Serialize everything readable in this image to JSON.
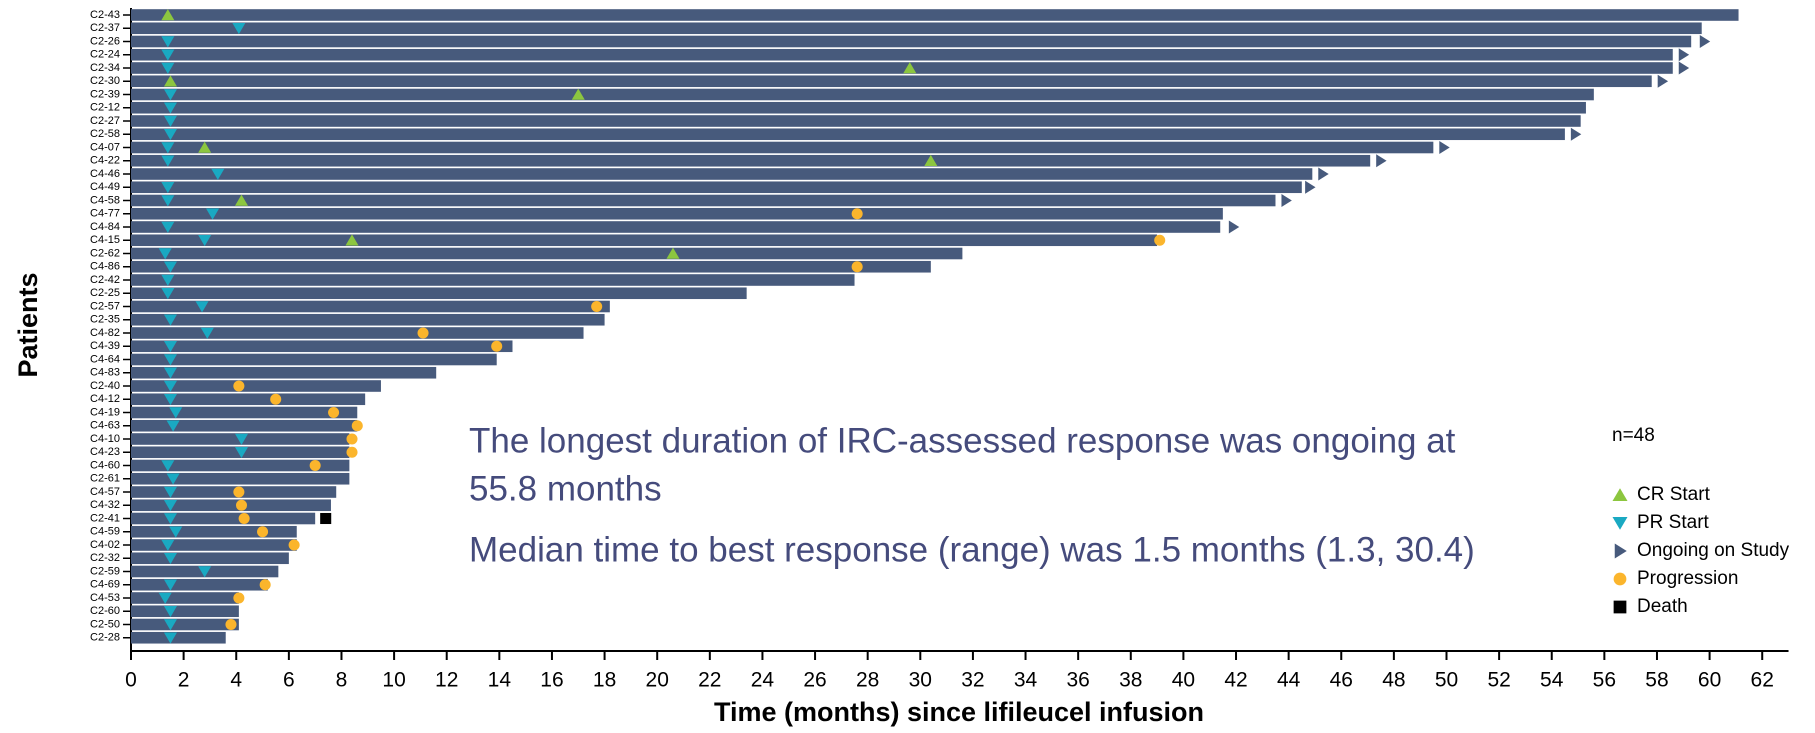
{
  "chart_data": {
    "type": "swimmer",
    "y_label": "Patients",
    "x_label": "Time (months) since lifileucel infusion",
    "annotations": [
      "The longest duration of IRC-assessed response was ongoing at",
      "55.8 months",
      "Median time to best response (range) was 1.5 months (1.3, 30.4)"
    ],
    "n_label": "n=48",
    "bar_color": "#475a7c",
    "categories": [
      "C2-43",
      "C2-37",
      "C2-26",
      "C2-24",
      "C2-34",
      "C2-30",
      "C2-39",
      "C2-12",
      "C2-27",
      "C2-58",
      "C4-07",
      "C4-22",
      "C4-46",
      "C4-49",
      "C4-58",
      "C4-77",
      "C4-84",
      "C4-15",
      "C2-62",
      "C4-86",
      "C2-42",
      "C2-25",
      "C2-57",
      "C2-35",
      "C4-82",
      "C4-39",
      "C4-64",
      "C4-83",
      "C2-40",
      "C4-12",
      "C4-19",
      "C4-63",
      "C4-10",
      "C4-23",
      "C4-60",
      "C2-61",
      "C4-57",
      "C4-32",
      "C2-41",
      "C4-59",
      "C4-02",
      "C2-32",
      "C2-59",
      "C4-69",
      "C4-53",
      "C2-60",
      "C2-50",
      "C2-28"
    ],
    "values": [
      61.1,
      59.7,
      59.3,
      58.6,
      58.6,
      57.8,
      55.6,
      55.3,
      55.1,
      54.5,
      49.5,
      47.1,
      44.9,
      44.5,
      43.5,
      41.5,
      41.4,
      39.0,
      31.6,
      30.4,
      27.5,
      23.4,
      18.2,
      18.0,
      17.2,
      14.5,
      13.9,
      11.6,
      9.5,
      8.9,
      8.6,
      8.6,
      8.3,
      8.3,
      8.3,
      8.3,
      7.8,
      7.6,
      7.0,
      6.3,
      6.3,
      6.0,
      5.6,
      5.2,
      4.1,
      4.1,
      4.1,
      3.6
    ],
    "series": [
      {
        "name": "CR Start",
        "color": "#8cc63f",
        "shape": "up",
        "values": [
          1.4,
          null,
          null,
          null,
          29.6,
          1.5,
          17.0,
          null,
          null,
          null,
          2.8,
          30.4,
          null,
          null,
          4.2,
          null,
          null,
          8.4,
          20.6,
          null,
          null,
          null,
          null,
          null,
          null,
          null,
          null,
          null,
          null,
          null,
          null,
          null,
          null,
          null,
          null,
          null,
          null,
          null,
          null,
          null,
          null,
          null,
          null,
          null,
          null,
          null,
          null,
          null
        ]
      },
      {
        "name": "PR Start",
        "color": "#1aa9c2",
        "shape": "down",
        "values": [
          null,
          4.1,
          1.4,
          1.4,
          1.4,
          null,
          1.5,
          1.5,
          1.5,
          1.5,
          1.4,
          1.4,
          3.3,
          1.4,
          1.4,
          3.1,
          1.4,
          2.8,
          1.3,
          1.5,
          1.4,
          1.4,
          2.7,
          1.5,
          2.9,
          1.5,
          1.5,
          1.5,
          1.5,
          1.5,
          1.7,
          1.6,
          4.2,
          4.2,
          1.4,
          1.6,
          1.5,
          1.5,
          1.5,
          1.7,
          1.4,
          1.5,
          2.8,
          1.5,
          1.3,
          1.5,
          1.5,
          1.5
        ]
      },
      {
        "name": "Ongoing on Study",
        "color": "#475a7c",
        "shape": "right",
        "values": [
          null,
          null,
          59.8,
          59.0,
          59.0,
          58.2,
          null,
          null,
          null,
          54.9,
          49.9,
          47.5,
          45.3,
          44.8,
          43.9,
          null,
          41.9,
          null,
          null,
          null,
          null,
          null,
          null,
          null,
          null,
          null,
          null,
          null,
          null,
          null,
          null,
          null,
          null,
          null,
          null,
          null,
          null,
          null,
          null,
          null,
          null,
          null,
          null,
          null,
          null,
          null,
          null,
          null
        ]
      },
      {
        "name": "Progression",
        "color": "#fbb52c",
        "shape": "circle",
        "values": [
          null,
          null,
          null,
          null,
          null,
          null,
          null,
          null,
          null,
          null,
          null,
          null,
          null,
          null,
          null,
          27.6,
          null,
          39.1,
          null,
          27.6,
          null,
          null,
          17.7,
          null,
          11.1,
          13.9,
          null,
          null,
          4.1,
          5.5,
          7.7,
          8.6,
          8.4,
          8.4,
          7.0,
          null,
          4.1,
          4.2,
          4.3,
          5.0,
          6.2,
          null,
          null,
          5.1,
          4.1,
          null,
          3.8,
          null
        ]
      },
      {
        "name": "Death",
        "color": "#000000",
        "shape": "square",
        "values": [
          null,
          null,
          null,
          null,
          null,
          null,
          null,
          null,
          null,
          null,
          null,
          null,
          null,
          null,
          null,
          null,
          null,
          null,
          null,
          null,
          null,
          null,
          null,
          null,
          null,
          null,
          null,
          null,
          null,
          null,
          null,
          null,
          null,
          null,
          null,
          null,
          null,
          null,
          7.4,
          null,
          null,
          null,
          null,
          null,
          null,
          null,
          null,
          null
        ]
      }
    ],
    "xlim": [
      0,
      63
    ],
    "xticks": [
      0,
      2,
      4,
      6,
      8,
      10,
      12,
      14,
      16,
      18,
      20,
      22,
      24,
      26,
      28,
      30,
      32,
      34,
      36,
      38,
      40,
      42,
      44,
      46,
      48,
      50,
      52,
      54,
      56,
      58,
      60,
      62
    ]
  }
}
